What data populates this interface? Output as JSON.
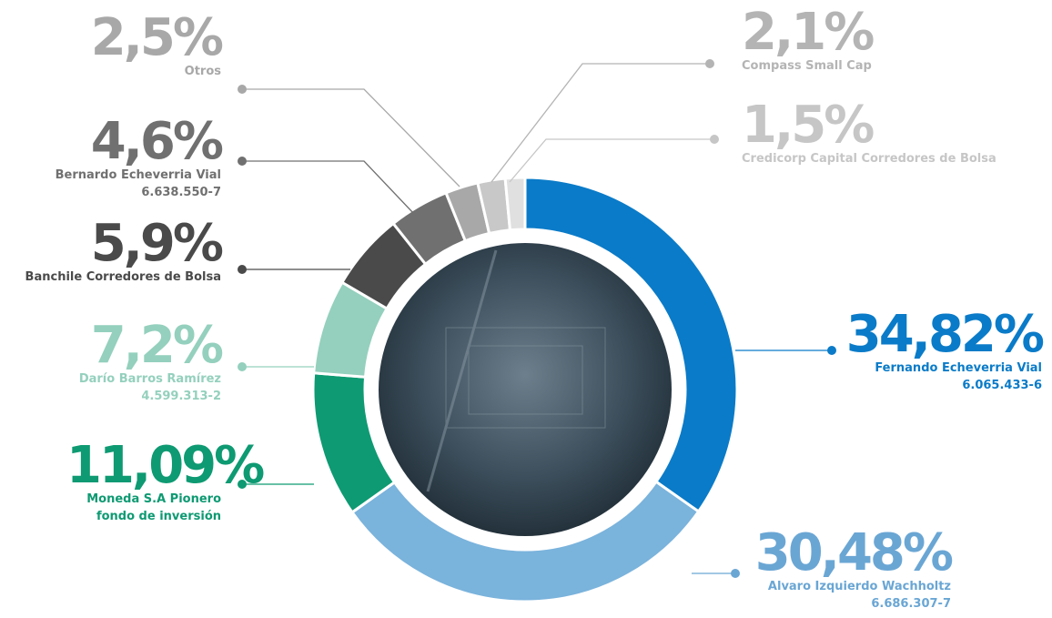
{
  "chart_data": {
    "type": "donut",
    "categories": [
      "Fernando Echeverria Vial",
      "Alvaro Izquierdo Wachholtz",
      "Moneda S.A Pionero fondo de inversión",
      "Darío Barros Ramírez",
      "Banchile Corredores de Bolsa",
      "Bernardo Echeverria Vial",
      "Otros",
      "Compass Small Cap",
      "Credicorp Capital Corredores de Bolsa"
    ],
    "ids": [
      "6.065.433-6",
      "6.686.307-7",
      null,
      "4.599.313-2",
      null,
      "6.638.550-7",
      null,
      null,
      null
    ],
    "values": [
      34.82,
      30.48,
      11.09,
      7.2,
      5.9,
      4.6,
      2.5,
      2.1,
      1.5
    ],
    "value_labels": [
      "34,82%",
      "30,48%",
      "11,09%",
      "7,2%",
      "5,9%",
      "4,6%",
      "2,5%",
      "2,1%",
      "1,5%"
    ],
    "colors": [
      "#0a7bc8",
      "#7ab3dc",
      "#0e9a72",
      "#94d0bd",
      "#4a4a4a",
      "#707070",
      "#a8a8a8",
      "#c8c8c8",
      "#e0e0e0"
    ]
  }
}
